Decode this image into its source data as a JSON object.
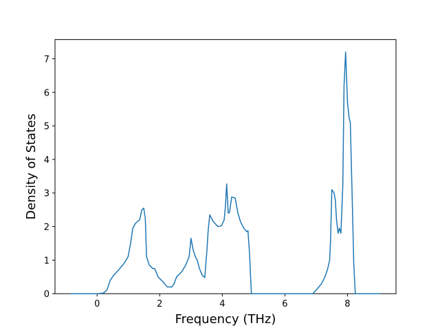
{
  "chart_data": {
    "type": "line",
    "x_label": "Frequency (THz)",
    "y_label": "Density of States",
    "xlim": [
      -1.345,
      9.55
    ],
    "ylim": [
      0,
      7.57
    ],
    "xticks": [
      0,
      2,
      4,
      6,
      8
    ],
    "yticks": [
      0,
      1,
      2,
      3,
      4,
      5,
      6,
      7
    ],
    "grid": false,
    "series": [
      {
        "color": "#1f77b4",
        "x": [
          -0.85,
          0,
          0.2,
          0.31,
          0.42,
          0.53,
          0.68,
          0.86,
          0.99,
          1.07,
          1.14,
          1.23,
          1.36,
          1.43,
          1.49,
          1.54,
          1.58,
          1.67,
          1.78,
          1.84,
          1.95,
          2.11,
          2.24,
          2.39,
          2.46,
          2.54,
          2.7,
          2.83,
          2.94,
          3.0,
          3.07,
          3.14,
          3.2,
          3.27,
          3.36,
          3.44,
          3.51,
          3.55,
          3.6,
          3.71,
          3.86,
          3.97,
          4.06,
          4.1,
          4.14,
          4.19,
          4.23,
          4.3,
          4.41,
          4.5,
          4.58,
          4.69,
          4.78,
          4.82,
          4.87,
          4.93,
          6.89,
          7.04,
          7.17,
          7.28,
          7.37,
          7.43,
          7.46,
          7.5,
          7.57,
          7.61,
          7.65,
          7.7,
          7.74,
          7.79,
          7.85,
          7.89,
          7.94,
          8.0,
          8.05,
          8.09,
          8.16,
          8.2,
          8.25,
          9.06
        ],
        "values": [
          0,
          0,
          0.02,
          0.1,
          0.4,
          0.55,
          0.7,
          0.9,
          1.1,
          1.5,
          1.95,
          2.1,
          2.2,
          2.5,
          2.55,
          2.25,
          1.1,
          0.85,
          0.75,
          0.75,
          0.5,
          0.35,
          0.2,
          0.2,
          0.3,
          0.5,
          0.65,
          0.85,
          1.1,
          1.65,
          1.3,
          1.1,
          1.0,
          0.75,
          0.55,
          0.48,
          1.3,
          1.9,
          2.35,
          2.15,
          2.0,
          2.02,
          2.2,
          2.6,
          3.27,
          2.4,
          2.42,
          2.88,
          2.85,
          2.4,
          2.15,
          1.95,
          1.85,
          1.88,
          1.2,
          0,
          0,
          0.15,
          0.3,
          0.5,
          0.75,
          1.0,
          1.6,
          3.1,
          3.0,
          2.8,
          2.2,
          1.8,
          1.95,
          1.8,
          3.2,
          6.2,
          7.2,
          5.7,
          5.25,
          5.1,
          2.5,
          0.9,
          0,
          0
        ]
      }
    ]
  }
}
